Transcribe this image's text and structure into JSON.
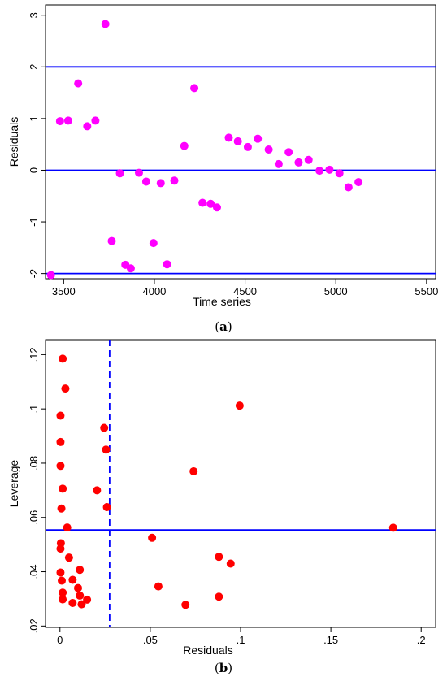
{
  "chart_data": [
    {
      "type": "scatter",
      "caption": "(a)",
      "caption_letter": "a",
      "title": "",
      "xlabel": "Time series",
      "ylabel": "Residuals",
      "xlim": [
        3400,
        5550
      ],
      "ylim": [
        -2.1,
        3.2
      ],
      "xticks": [
        3500,
        4000,
        4500,
        5000,
        5500
      ],
      "xtick_labels": [
        "3500",
        "4000",
        "4500",
        "5000",
        "5500"
      ],
      "yticks": [
        -2,
        -1,
        0,
        1,
        2,
        3
      ],
      "ytick_labels": [
        "-2",
        "-1",
        "0",
        "1",
        "2",
        "3"
      ],
      "grid": false,
      "marker_color": "#ff00ff",
      "line_color": "#0000ff",
      "reference_lines": {
        "horizontal": [
          2,
          0,
          -2
        ]
      },
      "series": [
        {
          "points": [
            [
              3430,
              -2.03
            ],
            [
              3480,
              0.95
            ],
            [
              3525,
              0.96
            ],
            [
              3580,
              1.68
            ],
            [
              3630,
              0.85
            ],
            [
              3675,
              0.96
            ],
            [
              3730,
              2.83
            ],
            [
              3765,
              -1.37
            ],
            [
              3810,
              -0.06
            ],
            [
              3840,
              -1.83
            ],
            [
              3870,
              -1.9
            ],
            [
              3915,
              -0.05
            ],
            [
              3955,
              -0.22
            ],
            [
              3995,
              -1.41
            ],
            [
              4035,
              -0.25
            ],
            [
              4070,
              -1.82
            ],
            [
              4110,
              -0.2
            ],
            [
              4165,
              0.47
            ],
            [
              4220,
              1.59
            ],
            [
              4265,
              -0.63
            ],
            [
              4310,
              -0.65
            ],
            [
              4345,
              -0.72
            ],
            [
              4410,
              0.63
            ],
            [
              4460,
              0.56
            ],
            [
              4515,
              0.45
            ],
            [
              4570,
              0.61
            ],
            [
              4630,
              0.4
            ],
            [
              4685,
              0.12
            ],
            [
              4740,
              0.35
            ],
            [
              4795,
              0.15
            ],
            [
              4850,
              0.2
            ],
            [
              4910,
              -0.01
            ],
            [
              4965,
              0.01
            ],
            [
              5020,
              -0.06
            ],
            [
              5070,
              -0.33
            ],
            [
              5125,
              -0.23
            ]
          ]
        }
      ]
    },
    {
      "type": "scatter",
      "caption": "(b)",
      "caption_letter": "b",
      "title": "",
      "xlabel": "Residuals",
      "ylabel": "Leverage",
      "xlim": [
        -0.008,
        0.208
      ],
      "ylim": [
        0.0195,
        0.1255
      ],
      "xticks": [
        0,
        0.05,
        0.1,
        0.15,
        0.2
      ],
      "xtick_labels": [
        "0",
        ".05",
        ".1",
        ".15",
        ".2"
      ],
      "yticks": [
        0.02,
        0.04,
        0.06,
        0.08,
        0.1,
        0.12
      ],
      "ytick_labels": [
        ".02",
        ".04",
        ".06",
        ".08",
        ".1",
        ".12"
      ],
      "grid": false,
      "marker_color": "#ff0000",
      "line_color": "#0000ff",
      "reference_lines": {
        "horizontal": [
          0.0554
        ],
        "vertical_dashed": [
          0.0275
        ]
      },
      "series": [
        {
          "points": [
            [
              0.0015,
              0.1185
            ],
            [
              0.003,
              0.1075
            ],
            [
              0.0003,
              0.0975
            ],
            [
              0.0003,
              0.0878
            ],
            [
              0.0003,
              0.079
            ],
            [
              0.0015,
              0.0706
            ],
            [
              0.0008,
              0.0633
            ],
            [
              0.004,
              0.0563
            ],
            [
              0.0005,
              0.0505
            ],
            [
              0.0003,
              0.0485
            ],
            [
              0.005,
              0.0452
            ],
            [
              0.011,
              0.0407
            ],
            [
              0.0003,
              0.0397
            ],
            [
              0.007,
              0.037
            ],
            [
              0.001,
              0.0367
            ],
            [
              0.01,
              0.034
            ],
            [
              0.0015,
              0.0323
            ],
            [
              0.011,
              0.0312
            ],
            [
              0.0015,
              0.0298
            ],
            [
              0.007,
              0.0285
            ],
            [
              0.012,
              0.028
            ],
            [
              0.015,
              0.0297
            ],
            [
              0.0245,
              0.093
            ],
            [
              0.0255,
              0.085
            ],
            [
              0.0205,
              0.07
            ],
            [
              0.026,
              0.0638
            ],
            [
              0.051,
              0.0525
            ],
            [
              0.0545,
              0.0346
            ],
            [
              0.0695,
              0.0278
            ],
            [
              0.074,
              0.077
            ],
            [
              0.088,
              0.0455
            ],
            [
              0.088,
              0.0308
            ],
            [
              0.0945,
              0.043
            ],
            [
              0.0995,
              0.1012
            ],
            [
              0.1845,
              0.0562
            ]
          ]
        }
      ]
    }
  ]
}
